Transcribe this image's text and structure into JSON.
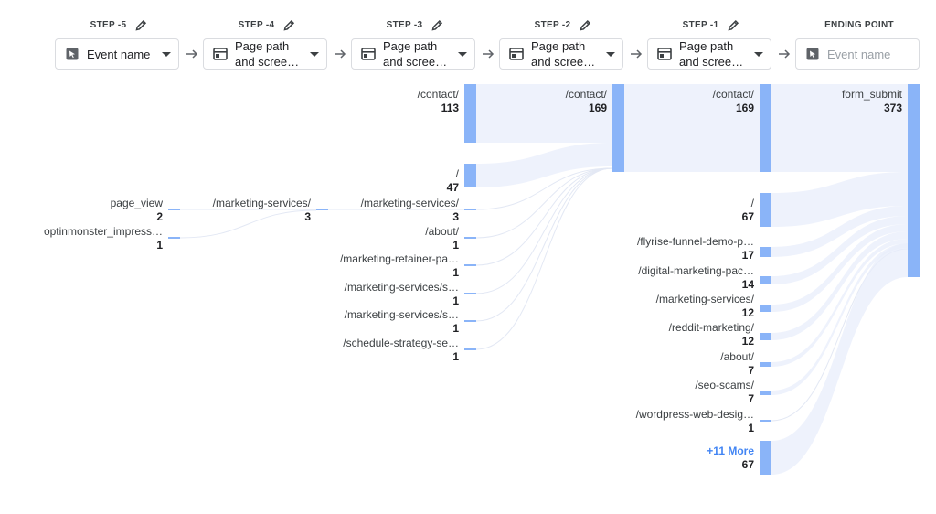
{
  "steps": [
    {
      "label": "STEP -5",
      "dimension": "Event name",
      "icon": "cursor-icon"
    },
    {
      "label": "STEP -4",
      "dimension": "Page path and scree…",
      "icon": "page-icon"
    },
    {
      "label": "STEP -3",
      "dimension": "Page path and scree…",
      "icon": "page-icon"
    },
    {
      "label": "STEP -2",
      "dimension": "Page path and scree…",
      "icon": "page-icon"
    },
    {
      "label": "STEP -1",
      "dimension": "Page path and scree…",
      "icon": "page-icon"
    },
    {
      "label": "ENDING POINT",
      "placeholder": "Event name",
      "icon": "cursor-icon"
    }
  ],
  "columns": [
    {
      "step": "STEP -5",
      "nodes": [
        {
          "name": "page_view",
          "value": 2
        },
        {
          "name": "optinmonster_impress…",
          "value": 1
        }
      ]
    },
    {
      "step": "STEP -4",
      "nodes": [
        {
          "name": "/marketing-services/",
          "value": 3
        }
      ]
    },
    {
      "step": "STEP -3",
      "nodes": [
        {
          "name": "/contact/",
          "value": 113
        },
        {
          "name": "/",
          "value": 47
        },
        {
          "name": "/marketing-services/",
          "value": 3
        },
        {
          "name": "/about/",
          "value": 1
        },
        {
          "name": "/marketing-retainer-pa…",
          "value": 1
        },
        {
          "name": "/marketing-services/s…",
          "value": 1
        },
        {
          "name": "/marketing-services/s…",
          "value": 1
        },
        {
          "name": "/schedule-strategy-se…",
          "value": 1
        }
      ]
    },
    {
      "step": "STEP -2",
      "nodes": [
        {
          "name": "/contact/",
          "value": 169
        }
      ]
    },
    {
      "step": "STEP -1",
      "nodes": [
        {
          "name": "/contact/",
          "value": 169
        },
        {
          "name": "/",
          "value": 67
        },
        {
          "name": "/flyrise-funnel-demo-p…",
          "value": 17
        },
        {
          "name": "/digital-marketing-pac…",
          "value": 14
        },
        {
          "name": "/marketing-services/",
          "value": 12
        },
        {
          "name": "/reddit-marketing/",
          "value": 12
        },
        {
          "name": "/about/",
          "value": 7
        },
        {
          "name": "/seo-scams/",
          "value": 7
        },
        {
          "name": "/wordpress-web-desig…",
          "value": 1
        },
        {
          "name": "+11 More",
          "value": 67,
          "more": true
        }
      ]
    },
    {
      "step": "ENDING POINT",
      "nodes": [
        {
          "name": "form_submit",
          "value": 373
        }
      ]
    }
  ],
  "colors": {
    "node": "#8ab4f8",
    "link": "#e8eefb",
    "more": "#4285f4"
  }
}
